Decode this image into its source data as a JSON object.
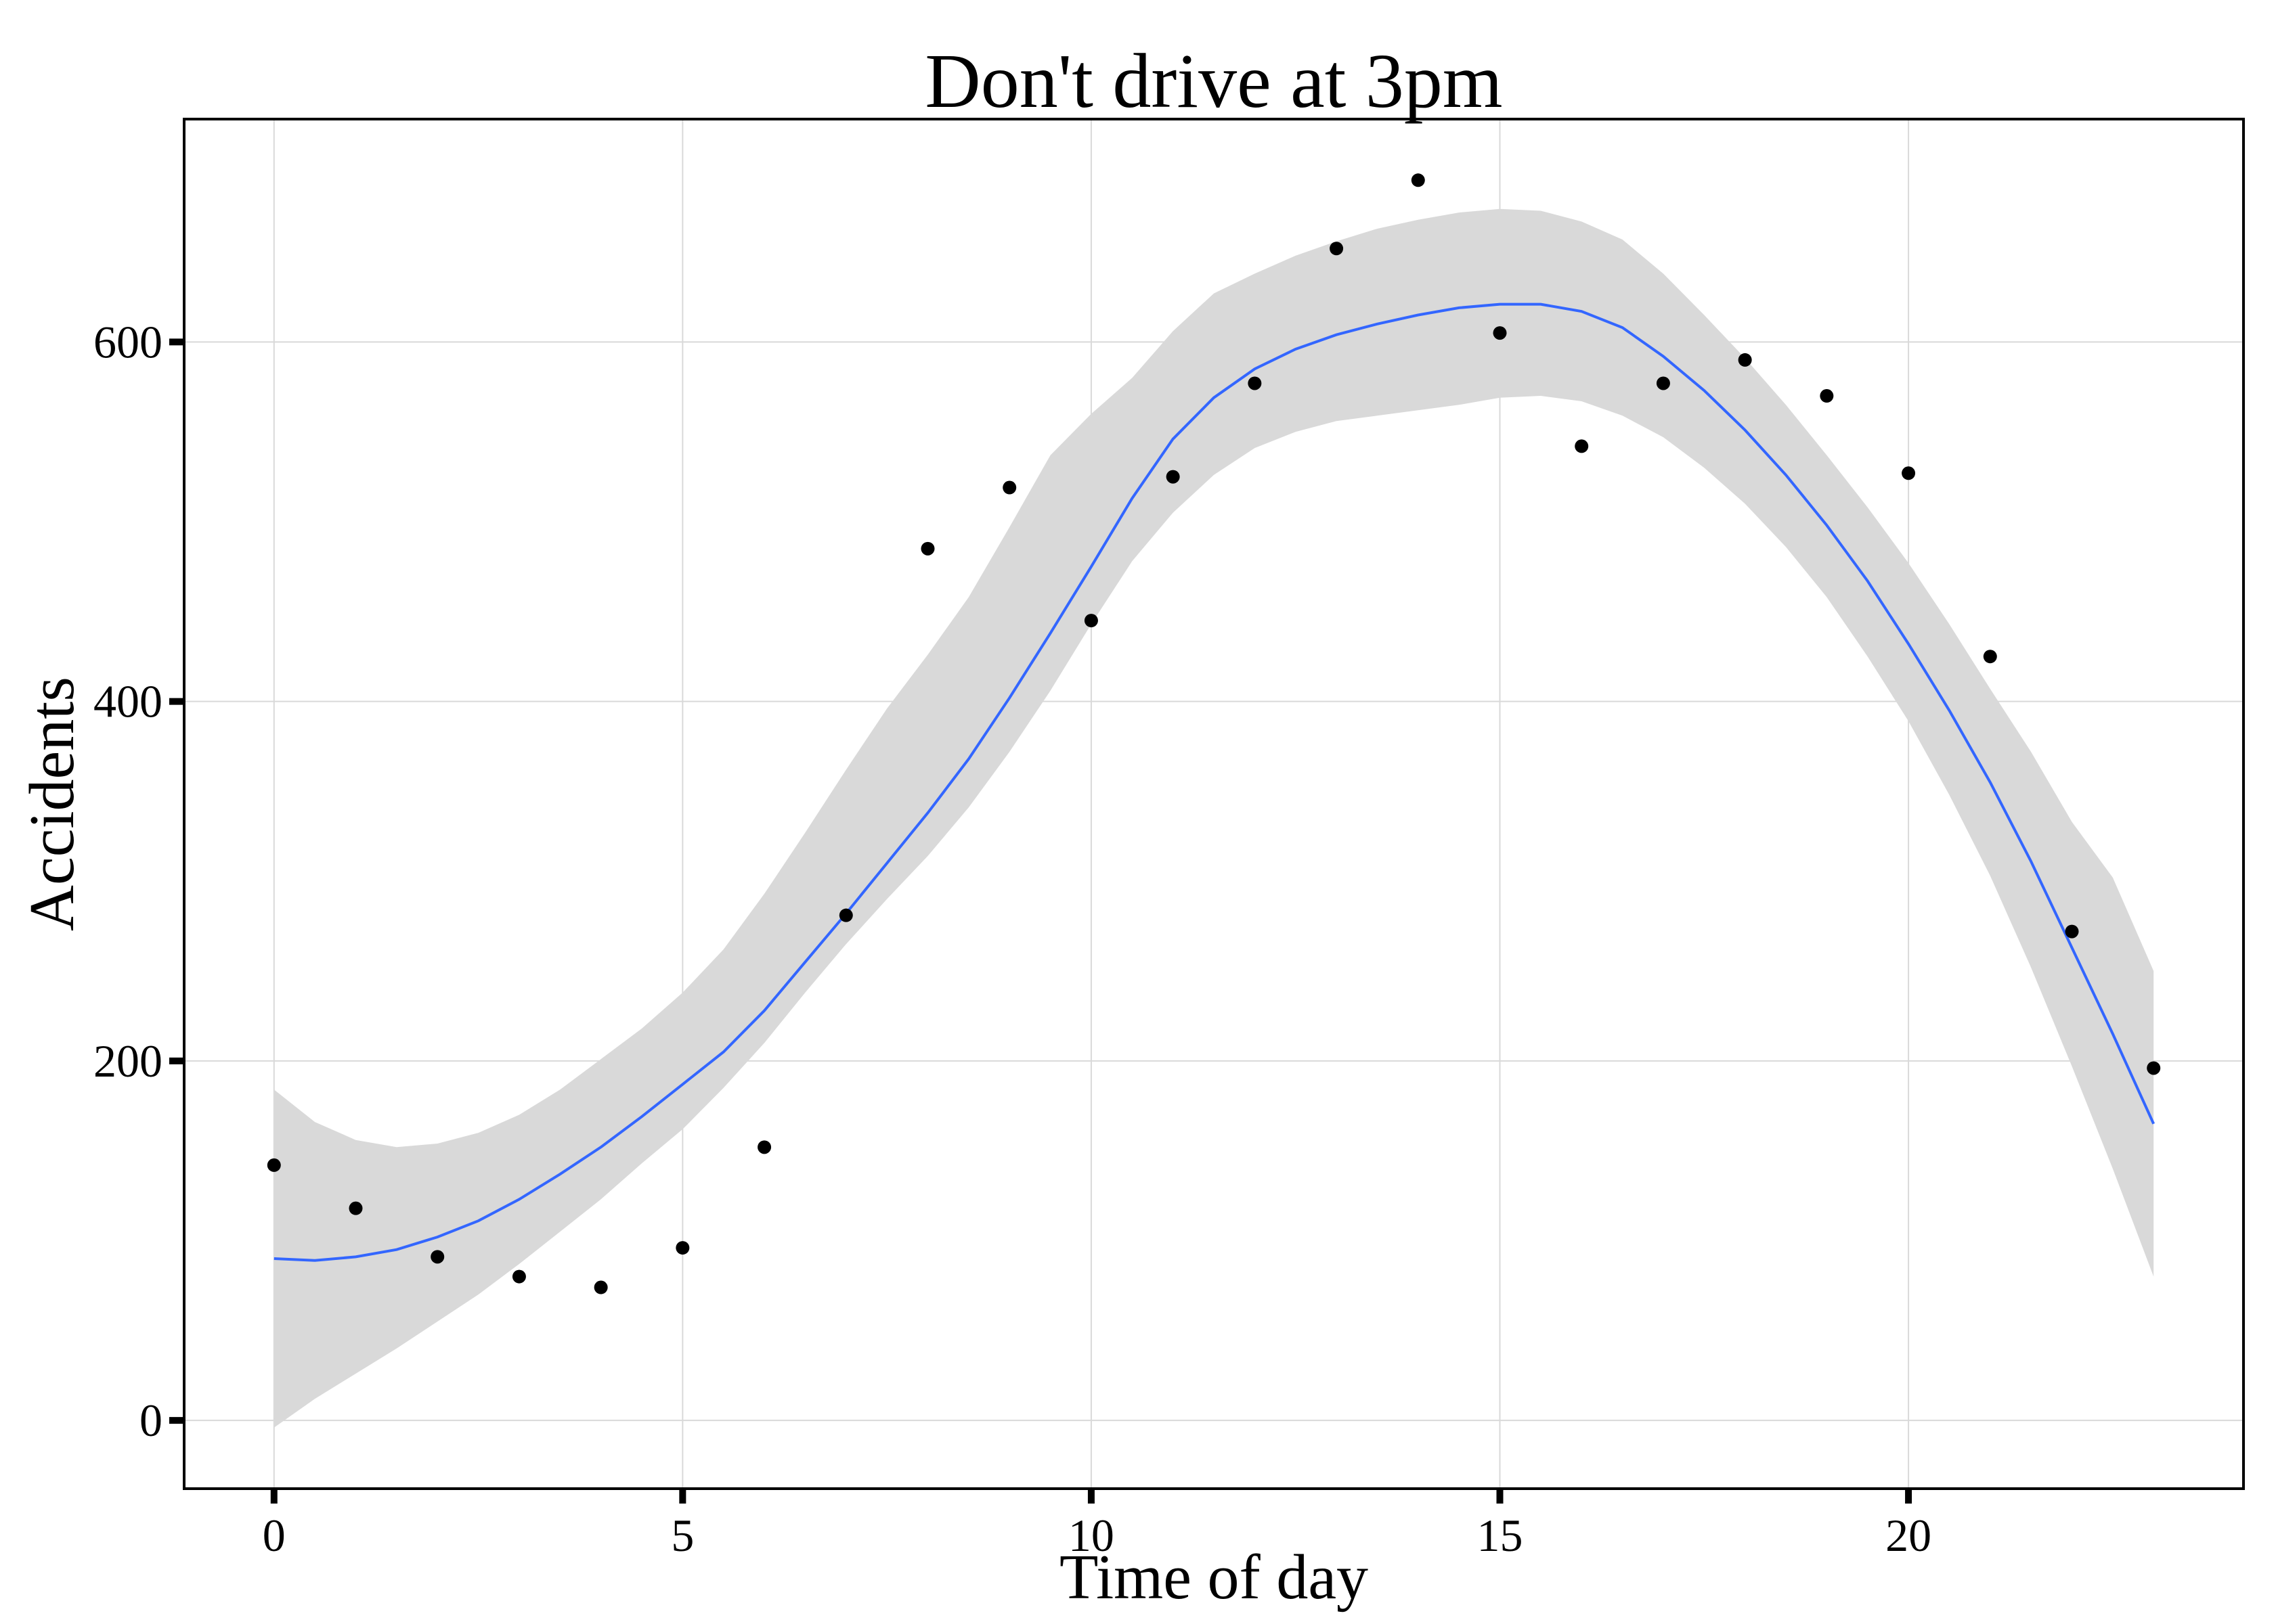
{
  "chart_data": {
    "type": "scatter",
    "title": "Don't drive at 3pm",
    "xlabel": "Time of day",
    "ylabel": "Accidents",
    "xlim": [
      -1.1,
      24.1
    ],
    "ylim": [
      -38,
      724
    ],
    "xticks": [
      0,
      5,
      10,
      15,
      20
    ],
    "yticks": [
      0,
      200,
      400,
      600
    ],
    "grid": true,
    "legend": "none",
    "series": [
      {
        "kind": "points",
        "color": "#000000",
        "x": [
          0,
          1,
          2,
          3,
          4,
          5,
          6,
          7,
          8,
          9,
          10,
          11,
          12,
          13,
          14,
          15,
          16,
          17,
          18,
          19,
          20,
          21,
          22,
          23
        ],
        "y": [
          142,
          118,
          91,
          80,
          74,
          96,
          152,
          281,
          485,
          519,
          445,
          525,
          577,
          652,
          690,
          605,
          542,
          577,
          590,
          570,
          527,
          425,
          272,
          196
        ]
      },
      {
        "kind": "smooth",
        "color": "#3366ff",
        "band_color": "#d9d9d9",
        "x": [
          0,
          0.5,
          1,
          1.5,
          2,
          2.5,
          3,
          3.5,
          4,
          4.5,
          5,
          5.5,
          6,
          6.5,
          7,
          7.5,
          8,
          8.5,
          9,
          9.5,
          10,
          10.5,
          11,
          11.5,
          12,
          12.5,
          13,
          13.5,
          14,
          14.5,
          15,
          15.5,
          16,
          16.5,
          17,
          17.5,
          18,
          18.5,
          19,
          19.5,
          20,
          20.5,
          21,
          21.5,
          22,
          22.5,
          23
        ],
        "y": [
          90,
          89,
          91,
          95,
          102,
          111,
          123,
          137,
          152,
          169,
          187,
          205,
          228,
          255,
          282,
          310,
          338,
          368,
          402,
          438,
          475,
          513,
          546,
          569,
          585,
          596,
          604,
          610,
          615,
          619,
          621,
          621,
          617,
          608,
          592,
          573,
          551,
          526,
          498,
          467,
          432,
          395,
          355,
          311,
          263,
          215,
          165
        ],
        "ymin": [
          -4,
          12,
          26,
          40,
          55,
          70,
          87,
          105,
          123,
          143,
          162,
          185,
          210,
          238,
          265,
          290,
          314,
          341,
          372,
          406,
          443,
          478,
          505,
          526,
          541,
          550,
          556,
          559,
          562,
          565,
          569,
          570,
          567,
          559,
          547,
          530,
          510,
          486,
          458,
          425,
          389,
          348,
          303,
          252,
          197,
          140,
          80
        ],
        "ymax": [
          184,
          166,
          156,
          152,
          154,
          160,
          170,
          184,
          201,
          218,
          238,
          262,
          293,
          327,
          362,
          396,
          426,
          458,
          497,
          537,
          560,
          580,
          606,
          627,
          638,
          648,
          656,
          663,
          668,
          672,
          674,
          673,
          667,
          657,
          638,
          615,
          591,
          565,
          537,
          508,
          477,
          443,
          407,
          372,
          333,
          302,
          250
        ]
      }
    ]
  }
}
